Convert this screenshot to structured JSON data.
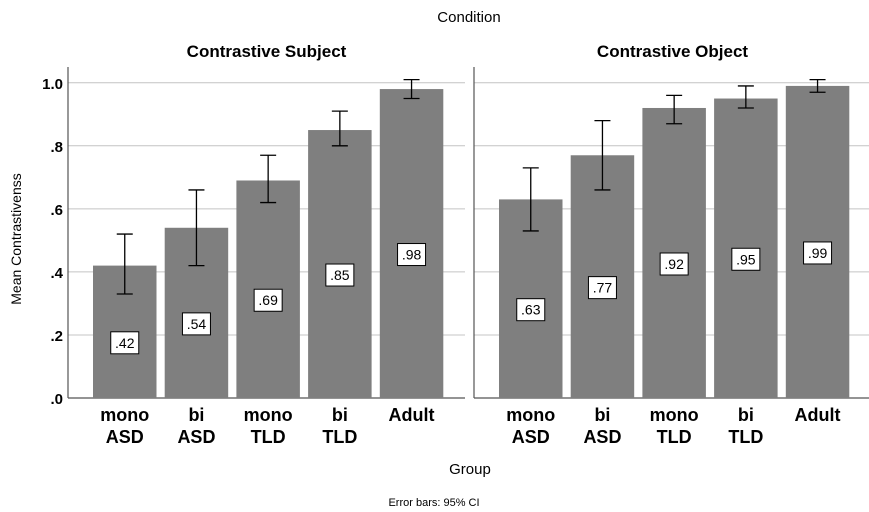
{
  "chart_data": {
    "type": "bar",
    "title": "Condition",
    "xlabel": "Group",
    "ylabel": "Mean Contrastivenss",
    "footnote": "Error bars: 95% CI",
    "ylim": [
      0,
      1.05
    ],
    "yticks": [
      ".0",
      ".2",
      ".4",
      ".6",
      ".8",
      "1.0"
    ],
    "ytick_values": [
      0,
      0.2,
      0.4,
      0.6,
      0.8,
      1.0
    ],
    "grid": true,
    "bar_color": "#7f7f7f",
    "panels": [
      {
        "title": "Contrastive Subject",
        "categories": [
          [
            "mono",
            "ASD"
          ],
          [
            "bi",
            "ASD"
          ],
          [
            "mono",
            "TLD"
          ],
          [
            "bi",
            "TLD"
          ],
          [
            "Adult"
          ]
        ],
        "values": [
          0.42,
          0.54,
          0.69,
          0.85,
          0.98
        ],
        "labels": [
          ".42",
          ".54",
          ".69",
          ".85",
          ".98"
        ],
        "ci_low": [
          0.33,
          0.42,
          0.62,
          0.8,
          0.95
        ],
        "ci_high": [
          0.52,
          0.66,
          0.77,
          0.91,
          1.01
        ]
      },
      {
        "title": "Contrastive Object",
        "categories": [
          [
            "mono",
            "ASD"
          ],
          [
            "bi",
            "ASD"
          ],
          [
            "mono",
            "TLD"
          ],
          [
            "bi",
            "TLD"
          ],
          [
            "Adult"
          ]
        ],
        "values": [
          0.63,
          0.77,
          0.92,
          0.95,
          0.99
        ],
        "labels": [
          ".63",
          ".77",
          ".92",
          ".95",
          ".99"
        ],
        "ci_low": [
          0.53,
          0.66,
          0.87,
          0.92,
          0.97
        ],
        "ci_high": [
          0.73,
          0.88,
          0.96,
          0.99,
          1.01
        ]
      }
    ]
  }
}
